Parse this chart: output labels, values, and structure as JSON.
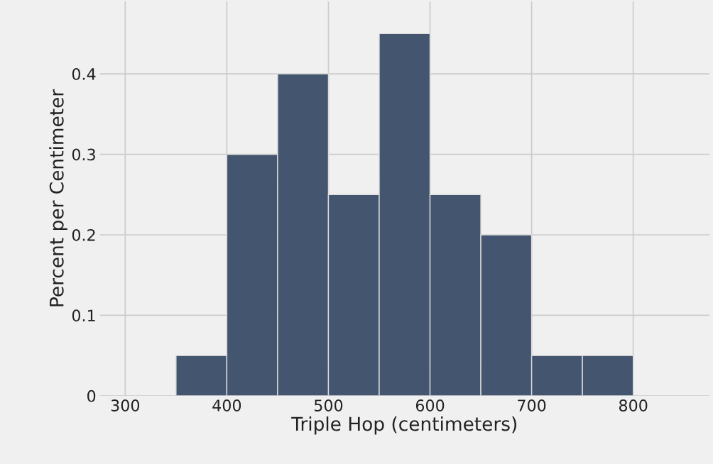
{
  "chart_data": {
    "type": "histogram",
    "xlabel": "Triple Hop (centimeters)",
    "ylabel": "Percent per Centimeter",
    "bins": [
      350,
      400,
      450,
      500,
      550,
      600,
      650,
      700,
      750,
      800
    ],
    "values": [
      0.05,
      0.3,
      0.4,
      0.25,
      0.45,
      0.25,
      0.2,
      0.05,
      0.05
    ],
    "color": "#44566f",
    "xlim": [
      275,
      875
    ],
    "ylim": [
      0,
      0.49
    ],
    "xticks": [
      300,
      400,
      500,
      600,
      700,
      800
    ],
    "yticks": [
      0,
      0.1,
      0.2,
      0.3,
      0.4
    ],
    "grid": true
  }
}
